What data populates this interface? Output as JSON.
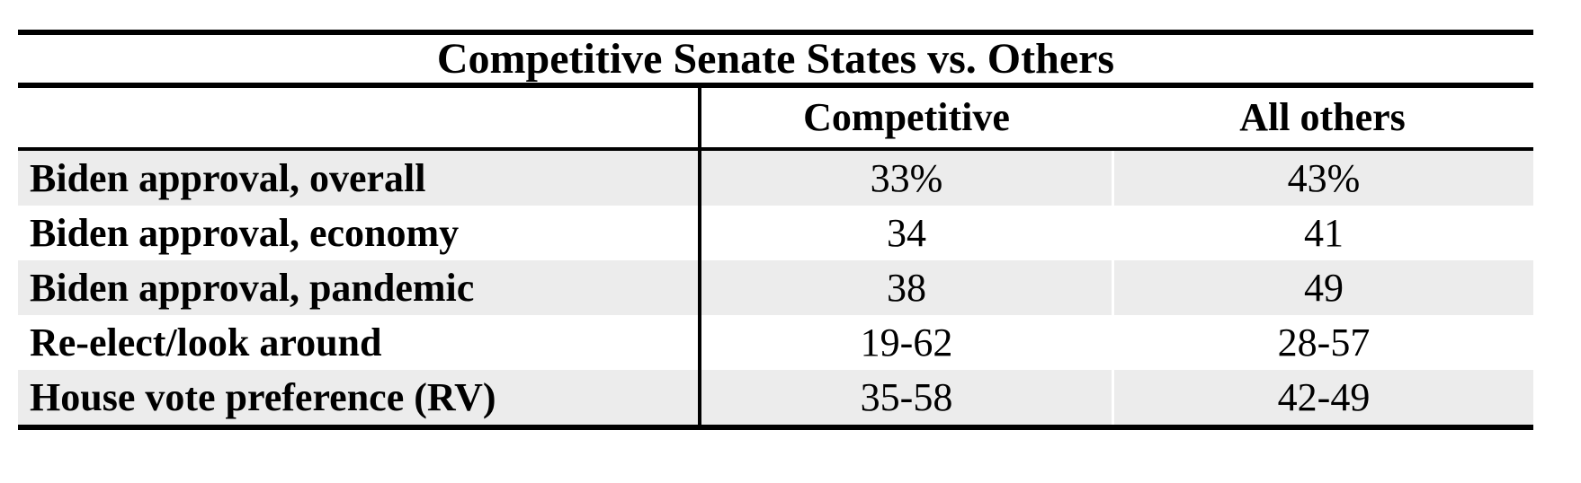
{
  "table": {
    "title": "Competitive Senate States vs. Others",
    "column_headers": {
      "competitive": "Competitive",
      "all_others": "All others"
    },
    "rows": [
      {
        "label": "Biden approval, overall",
        "competitive": "33%",
        "all_others": "43%"
      },
      {
        "label": "Biden approval, economy",
        "competitive": "34",
        "all_others": "41"
      },
      {
        "label": "Biden approval, pandemic",
        "competitive": "38",
        "all_others": "49"
      },
      {
        "label": "Re-elect/look around",
        "competitive": "19-62",
        "all_others": "28-57"
      },
      {
        "label": "House vote preference (RV)",
        "competitive": "35-58",
        "all_others": "42-49"
      }
    ],
    "style": {
      "stripe_color": "#ececec",
      "line_color": "#000000",
      "text_color": "#000000",
      "background_color": "#ffffff"
    }
  },
  "chart_data": {
    "type": "table",
    "title": "Competitive Senate States vs. Others",
    "columns": [
      "",
      "Competitive",
      "All others"
    ],
    "rows": [
      [
        "Biden approval, overall",
        "33%",
        "43%"
      ],
      [
        "Biden approval, economy",
        "34",
        "41"
      ],
      [
        "Biden approval, pandemic",
        "38",
        "49"
      ],
      [
        "Re-elect/look around",
        "19-62",
        "28-57"
      ],
      [
        "House vote preference (RV)",
        "35-58",
        "42-49"
      ]
    ],
    "notes": "Two-group comparison table; ranges are favorable-unfavorable style splits; striped rows; bold serif labels"
  }
}
